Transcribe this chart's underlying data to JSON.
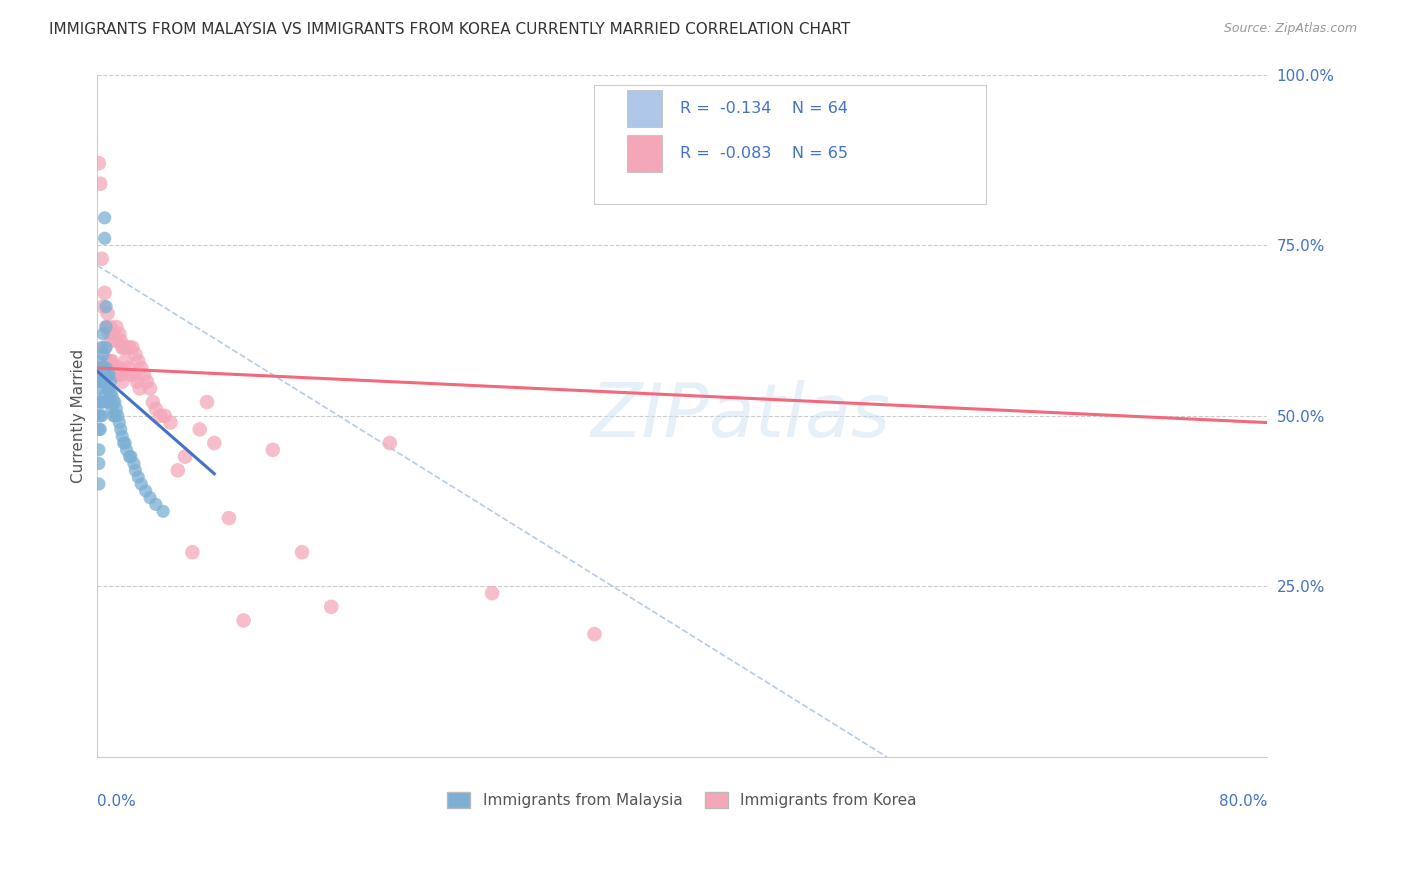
{
  "title": "IMMIGRANTS FROM MALAYSIA VS IMMIGRANTS FROM KOREA CURRENTLY MARRIED CORRELATION CHART",
  "source": "Source: ZipAtlas.com",
  "ylabel": "Currently Married",
  "legend_malaysia": {
    "color": "#aec6e8",
    "R": "-0.134",
    "N": "64"
  },
  "legend_korea": {
    "color": "#f4a7b9",
    "R": "-0.083",
    "N": "65"
  },
  "legend_bottom_malaysia": "Immigrants from Malaysia",
  "legend_bottom_korea": "Immigrants from Korea",
  "background_color": "#ffffff",
  "grid_color": "#cccccc",
  "right_axis_color": "#4472c4",
  "malaysia_scatter_color": "#7bafd4",
  "korea_scatter_color": "#f4a7b9",
  "malaysia_line_color": "#4472c4",
  "korea_line_color": "#f4687c",
  "dashed_line_color": "#aec6e8",
  "malaysia_points_x": [
    0.001,
    0.001,
    0.001,
    0.001,
    0.001,
    0.001,
    0.001,
    0.001,
    0.002,
    0.002,
    0.002,
    0.002,
    0.002,
    0.002,
    0.003,
    0.003,
    0.003,
    0.003,
    0.003,
    0.004,
    0.004,
    0.004,
    0.004,
    0.004,
    0.005,
    0.005,
    0.005,
    0.005,
    0.006,
    0.006,
    0.006,
    0.006,
    0.007,
    0.007,
    0.007,
    0.008,
    0.008,
    0.008,
    0.009,
    0.009,
    0.01,
    0.01,
    0.011,
    0.011,
    0.012,
    0.012,
    0.013,
    0.014,
    0.015,
    0.016,
    0.017,
    0.018,
    0.019,
    0.02,
    0.022,
    0.023,
    0.025,
    0.026,
    0.028,
    0.03,
    0.033,
    0.036,
    0.04,
    0.045
  ],
  "malaysia_points_y": [
    0.57,
    0.55,
    0.52,
    0.5,
    0.48,
    0.45,
    0.43,
    0.4,
    0.58,
    0.56,
    0.54,
    0.52,
    0.5,
    0.48,
    0.6,
    0.57,
    0.55,
    0.52,
    0.5,
    0.62,
    0.59,
    0.57,
    0.55,
    0.52,
    0.79,
    0.76,
    0.56,
    0.53,
    0.66,
    0.63,
    0.6,
    0.57,
    0.56,
    0.54,
    0.52,
    0.56,
    0.54,
    0.52,
    0.55,
    0.53,
    0.53,
    0.51,
    0.52,
    0.5,
    0.52,
    0.5,
    0.51,
    0.5,
    0.49,
    0.48,
    0.47,
    0.46,
    0.46,
    0.45,
    0.44,
    0.44,
    0.43,
    0.42,
    0.41,
    0.4,
    0.39,
    0.38,
    0.37,
    0.36
  ],
  "korea_points_x": [
    0.001,
    0.002,
    0.003,
    0.004,
    0.005,
    0.005,
    0.006,
    0.006,
    0.007,
    0.007,
    0.008,
    0.008,
    0.009,
    0.009,
    0.01,
    0.01,
    0.011,
    0.011,
    0.012,
    0.012,
    0.013,
    0.013,
    0.014,
    0.014,
    0.015,
    0.015,
    0.016,
    0.016,
    0.017,
    0.017,
    0.018,
    0.019,
    0.02,
    0.021,
    0.022,
    0.023,
    0.024,
    0.025,
    0.026,
    0.027,
    0.028,
    0.029,
    0.03,
    0.032,
    0.034,
    0.036,
    0.038,
    0.04,
    0.043,
    0.046,
    0.05,
    0.055,
    0.06,
    0.065,
    0.07,
    0.075,
    0.08,
    0.09,
    0.1,
    0.12,
    0.14,
    0.16,
    0.2,
    0.27,
    0.34
  ],
  "korea_points_y": [
    0.87,
    0.84,
    0.73,
    0.66,
    0.68,
    0.6,
    0.63,
    0.57,
    0.65,
    0.58,
    0.62,
    0.58,
    0.63,
    0.58,
    0.62,
    0.58,
    0.62,
    0.57,
    0.61,
    0.56,
    0.63,
    0.57,
    0.61,
    0.56,
    0.62,
    0.57,
    0.61,
    0.56,
    0.6,
    0.55,
    0.6,
    0.58,
    0.6,
    0.57,
    0.6,
    0.56,
    0.6,
    0.56,
    0.59,
    0.55,
    0.58,
    0.54,
    0.57,
    0.56,
    0.55,
    0.54,
    0.52,
    0.51,
    0.5,
    0.5,
    0.49,
    0.42,
    0.44,
    0.3,
    0.48,
    0.52,
    0.46,
    0.35,
    0.2,
    0.45,
    0.3,
    0.22,
    0.46,
    0.24,
    0.18
  ]
}
